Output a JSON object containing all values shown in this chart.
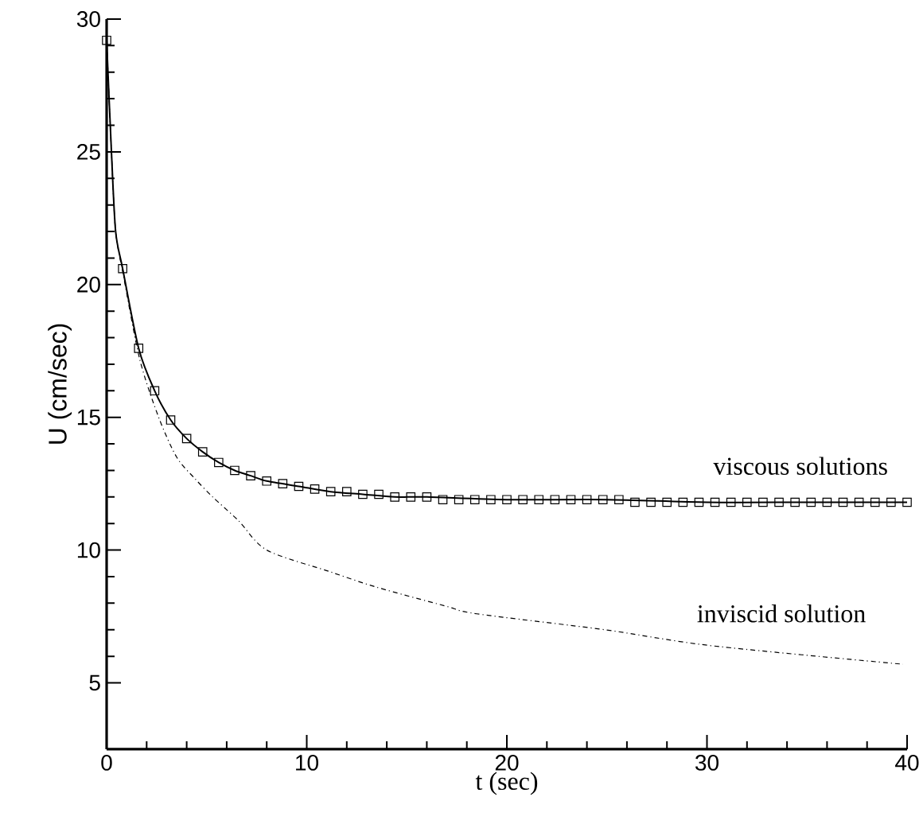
{
  "chart_data": {
    "type": "line",
    "xlabel": "t (sec)",
    "ylabel": "U (cm/sec)",
    "xlim": [
      0,
      40
    ],
    "ylim": [
      2.5,
      30
    ],
    "xticks": [
      0,
      10,
      20,
      30,
      40
    ],
    "yticks": [
      5,
      10,
      15,
      20,
      25,
      30
    ],
    "grid": false,
    "legend": false,
    "series": [
      {
        "type": "line",
        "color": "#000000",
        "line_style": "solid",
        "marker": "none",
        "x": [
          0,
          0.24,
          0.45,
          0.8,
          1.6,
          2.4,
          3.2,
          4,
          4.8,
          5.6,
          6.4,
          7.2,
          8,
          9.6,
          11.2,
          12.8,
          14.4,
          16,
          20,
          25,
          30,
          35,
          40
        ],
        "values": [
          29.2,
          25,
          22,
          20.6,
          17.6,
          16.0,
          14.9,
          14.2,
          13.7,
          13.3,
          13.0,
          12.8,
          12.6,
          12.4,
          12.2,
          12.1,
          12.0,
          12.0,
          11.9,
          11.9,
          11.8,
          11.8,
          11.8
        ]
      },
      {
        "type": "scatter",
        "color": "#000000",
        "marker": "square",
        "x": [
          0,
          0.8,
          1.6,
          2.4,
          3.2,
          4,
          4.8,
          5.6,
          6.4,
          7.2,
          8,
          8.8,
          9.6,
          10.4,
          11.2,
          12,
          12.8,
          13.6,
          14.4,
          15.2,
          16,
          16.8,
          17.6,
          18.4,
          19.2,
          20,
          20.8,
          21.6,
          22.4,
          23.2,
          24,
          24.8,
          25.6,
          26.4,
          27.2,
          28,
          28.8,
          29.6,
          30.4,
          31.2,
          32,
          32.8,
          33.6,
          34.4,
          35.2,
          36,
          36.8,
          37.6,
          38.4,
          39.2,
          40
        ],
        "values": [
          29.2,
          20.6,
          17.6,
          16.0,
          14.9,
          14.2,
          13.7,
          13.3,
          13.0,
          12.8,
          12.6,
          12.5,
          12.4,
          12.3,
          12.2,
          12.2,
          12.1,
          12.1,
          12.0,
          12.0,
          12.0,
          11.9,
          11.9,
          11.9,
          11.9,
          11.9,
          11.9,
          11.9,
          11.9,
          11.9,
          11.9,
          11.9,
          11.9,
          11.8,
          11.8,
          11.8,
          11.8,
          11.8,
          11.8,
          11.8,
          11.8,
          11.8,
          11.8,
          11.8,
          11.8,
          11.8,
          11.8,
          11.8,
          11.8,
          11.8,
          11.8
        ]
      },
      {
        "type": "line",
        "color": "#000000",
        "line_style": "dashdotted",
        "marker": "none",
        "x": [
          0,
          0.24,
          0.45,
          0.85,
          1.65,
          2.6,
          3.5,
          4.4,
          5.3,
          6.6,
          8,
          11.1,
          13.5,
          16.9,
          18.5,
          24.9,
          30.2,
          39.8
        ],
        "values": [
          29.2,
          25,
          22,
          20.3,
          17.2,
          15,
          13.5,
          12.7,
          12,
          11.1,
          10,
          9.2,
          8.6,
          7.9,
          7.6,
          7.0,
          6.4,
          5.7
        ]
      }
    ],
    "annotations": [
      "viscous solutions",
      "inviscid solution"
    ]
  }
}
